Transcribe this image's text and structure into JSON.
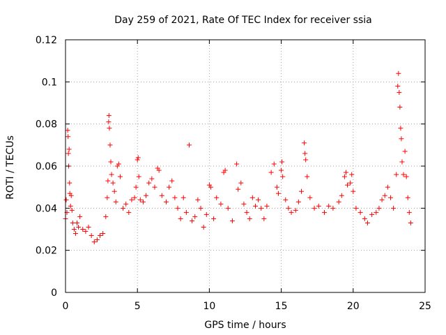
{
  "chart_data": {
    "type": "scatter",
    "title": "Day 259 of 2021, Rate Of TEC Index for receiver ssia",
    "xlabel": "GPS time / hours",
    "ylabel": "ROTI / TECUs",
    "xlim": [
      0,
      25
    ],
    "ylim": [
      0,
      0.12
    ],
    "xticks": [
      0,
      5,
      10,
      15,
      20,
      25
    ],
    "xtick_labels": [
      "0",
      "5",
      "10",
      "15",
      "20",
      "25"
    ],
    "yticks": [
      0,
      0.02,
      0.04,
      0.06,
      0.08,
      0.1,
      0.12
    ],
    "ytick_labels": [
      "0",
      "0.02",
      "0.04",
      "0.06",
      "0.08",
      "0.1",
      "0.12"
    ],
    "grid": true,
    "marker": "+",
    "color": "#ff0000",
    "series": [
      {
        "name": "ROTI",
        "points": [
          [
            0.0,
            0.035
          ],
          [
            0.05,
            0.044
          ],
          [
            0.1,
            0.038
          ],
          [
            0.15,
            0.077
          ],
          [
            0.18,
            0.074
          ],
          [
            0.2,
            0.066
          ],
          [
            0.22,
            0.06
          ],
          [
            0.25,
            0.068
          ],
          [
            0.28,
            0.052
          ],
          [
            0.3,
            0.047
          ],
          [
            0.35,
            0.041
          ],
          [
            0.4,
            0.046
          ],
          [
            0.45,
            0.039
          ],
          [
            0.5,
            0.033
          ],
          [
            0.6,
            0.03
          ],
          [
            0.7,
            0.028
          ],
          [
            0.8,
            0.033
          ],
          [
            0.9,
            0.031
          ],
          [
            1.0,
            0.036
          ],
          [
            1.2,
            0.03
          ],
          [
            1.4,
            0.029
          ],
          [
            1.6,
            0.031
          ],
          [
            1.8,
            0.027
          ],
          [
            2.0,
            0.024
          ],
          [
            2.2,
            0.025
          ],
          [
            2.4,
            0.027
          ],
          [
            2.6,
            0.028
          ],
          [
            2.8,
            0.036
          ],
          [
            2.9,
            0.045
          ],
          [
            2.95,
            0.053
          ],
          [
            3.0,
            0.081
          ],
          [
            3.02,
            0.084
          ],
          [
            3.05,
            0.078
          ],
          [
            3.1,
            0.07
          ],
          [
            3.15,
            0.062
          ],
          [
            3.2,
            0.056
          ],
          [
            3.3,
            0.052
          ],
          [
            3.4,
            0.048
          ],
          [
            3.5,
            0.043
          ],
          [
            3.6,
            0.06
          ],
          [
            3.7,
            0.061
          ],
          [
            3.8,
            0.055
          ],
          [
            4.0,
            0.04
          ],
          [
            4.2,
            0.042
          ],
          [
            4.4,
            0.038
          ],
          [
            4.6,
            0.044
          ],
          [
            4.8,
            0.045
          ],
          [
            4.9,
            0.05
          ],
          [
            5.0,
            0.063
          ],
          [
            5.05,
            0.064
          ],
          [
            5.1,
            0.055
          ],
          [
            5.2,
            0.044
          ],
          [
            5.4,
            0.043
          ],
          [
            5.6,
            0.046
          ],
          [
            5.8,
            0.052
          ],
          [
            6.0,
            0.054
          ],
          [
            6.2,
            0.05
          ],
          [
            6.4,
            0.059
          ],
          [
            6.5,
            0.058
          ],
          [
            6.7,
            0.046
          ],
          [
            7.0,
            0.043
          ],
          [
            7.2,
            0.05
          ],
          [
            7.4,
            0.053
          ],
          [
            7.6,
            0.045
          ],
          [
            7.8,
            0.04
          ],
          [
            8.0,
            0.035
          ],
          [
            8.2,
            0.045
          ],
          [
            8.4,
            0.038
          ],
          [
            8.6,
            0.07
          ],
          [
            8.8,
            0.034
          ],
          [
            9.0,
            0.036
          ],
          [
            9.2,
            0.044
          ],
          [
            9.4,
            0.04
          ],
          [
            9.6,
            0.031
          ],
          [
            9.8,
            0.037
          ],
          [
            10.0,
            0.051
          ],
          [
            10.1,
            0.05
          ],
          [
            10.3,
            0.035
          ],
          [
            10.5,
            0.045
          ],
          [
            10.8,
            0.042
          ],
          [
            11.0,
            0.057
          ],
          [
            11.1,
            0.058
          ],
          [
            11.3,
            0.04
          ],
          [
            11.6,
            0.034
          ],
          [
            11.9,
            0.061
          ],
          [
            12.0,
            0.049
          ],
          [
            12.2,
            0.052
          ],
          [
            12.4,
            0.042
          ],
          [
            12.6,
            0.038
          ],
          [
            12.8,
            0.035
          ],
          [
            13.0,
            0.045
          ],
          [
            13.2,
            0.041
          ],
          [
            13.4,
            0.044
          ],
          [
            13.6,
            0.04
          ],
          [
            13.8,
            0.035
          ],
          [
            14.0,
            0.041
          ],
          [
            14.3,
            0.057
          ],
          [
            14.5,
            0.061
          ],
          [
            14.7,
            0.05
          ],
          [
            14.8,
            0.047
          ],
          [
            15.0,
            0.058
          ],
          [
            15.05,
            0.062
          ],
          [
            15.1,
            0.055
          ],
          [
            15.3,
            0.044
          ],
          [
            15.5,
            0.04
          ],
          [
            15.7,
            0.038
          ],
          [
            16.0,
            0.039
          ],
          [
            16.2,
            0.043
          ],
          [
            16.4,
            0.048
          ],
          [
            16.6,
            0.071
          ],
          [
            16.65,
            0.066
          ],
          [
            16.7,
            0.063
          ],
          [
            16.8,
            0.055
          ],
          [
            17.0,
            0.045
          ],
          [
            17.3,
            0.04
          ],
          [
            17.6,
            0.041
          ],
          [
            18.0,
            0.038
          ],
          [
            18.3,
            0.041
          ],
          [
            18.6,
            0.04
          ],
          [
            19.0,
            0.043
          ],
          [
            19.2,
            0.046
          ],
          [
            19.4,
            0.055
          ],
          [
            19.5,
            0.057
          ],
          [
            19.6,
            0.051
          ],
          [
            19.8,
            0.052
          ],
          [
            19.9,
            0.056
          ],
          [
            20.0,
            0.048
          ],
          [
            20.2,
            0.04
          ],
          [
            20.5,
            0.038
          ],
          [
            20.8,
            0.035
          ],
          [
            21.0,
            0.033
          ],
          [
            21.3,
            0.037
          ],
          [
            21.6,
            0.038
          ],
          [
            21.8,
            0.04
          ],
          [
            22.0,
            0.044
          ],
          [
            22.2,
            0.046
          ],
          [
            22.4,
            0.05
          ],
          [
            22.6,
            0.045
          ],
          [
            22.8,
            0.04
          ],
          [
            23.0,
            0.056
          ],
          [
            23.1,
            0.098
          ],
          [
            23.15,
            0.104
          ],
          [
            23.2,
            0.095
          ],
          [
            23.25,
            0.088
          ],
          [
            23.3,
            0.078
          ],
          [
            23.35,
            0.073
          ],
          [
            23.4,
            0.062
          ],
          [
            23.5,
            0.056
          ],
          [
            23.6,
            0.067
          ],
          [
            23.7,
            0.055
          ],
          [
            23.8,
            0.045
          ],
          [
            23.9,
            0.038
          ],
          [
            24.0,
            0.033
          ]
        ]
      }
    ]
  }
}
